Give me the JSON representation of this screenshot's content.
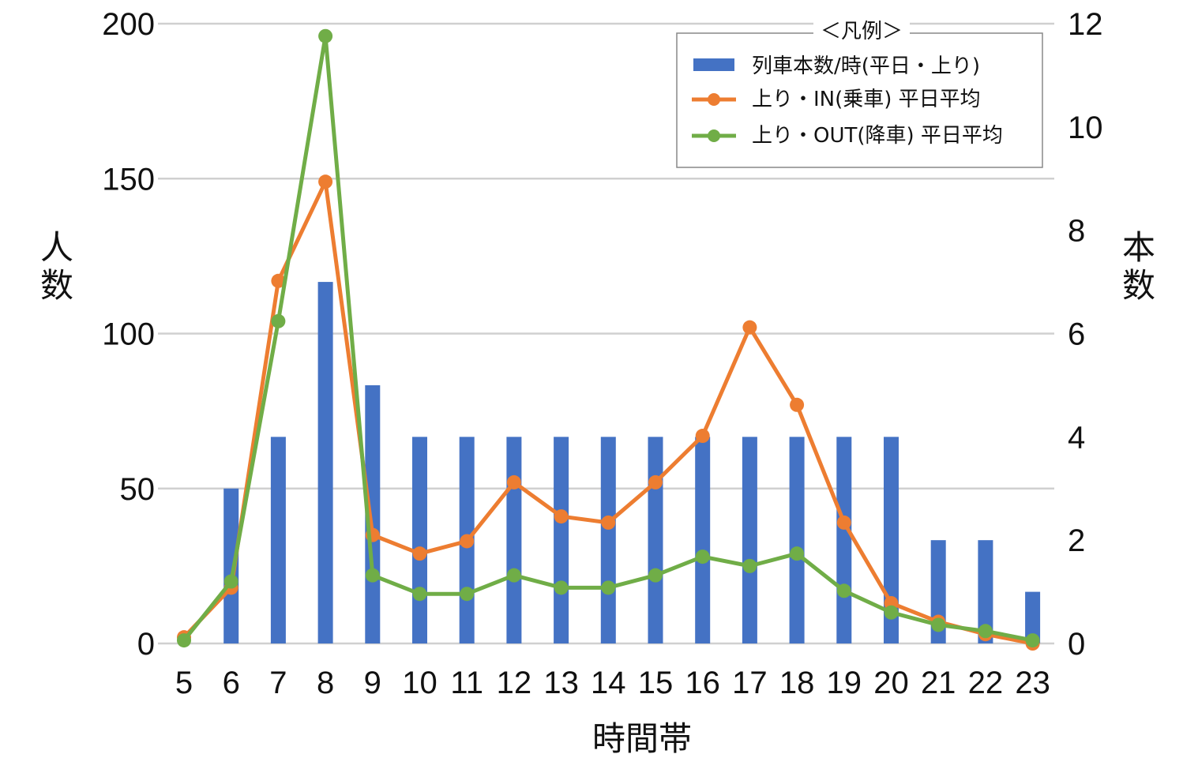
{
  "chart_data": {
    "type": "bar",
    "categories": [
      "5",
      "6",
      "7",
      "8",
      "9",
      "10",
      "11",
      "12",
      "13",
      "14",
      "15",
      "16",
      "17",
      "18",
      "19",
      "20",
      "21",
      "22",
      "23"
    ],
    "bar_series": {
      "name": "列車本数/時(平日・上り)",
      "axis": "right",
      "color": "#4472C4",
      "values": [
        0,
        3,
        4,
        7,
        5,
        4,
        4,
        4,
        4,
        4,
        4,
        4,
        4,
        4,
        4,
        4,
        2,
        2,
        1
      ]
    },
    "line_series": [
      {
        "name": "上り・IN(乗車) 平日平均",
        "axis": "left",
        "color": "#ED7D31",
        "values": [
          2,
          18,
          117,
          149,
          35,
          29,
          33,
          52,
          41,
          39,
          52,
          67,
          102,
          77,
          39,
          13,
          7,
          3,
          0
        ]
      },
      {
        "name": "上り・OUT(降車) 平日平均",
        "axis": "left",
        "color": "#70AD47",
        "values": [
          1,
          20,
          104,
          196,
          22,
          16,
          16,
          22,
          18,
          18,
          22,
          28,
          25,
          29,
          17,
          10,
          6,
          4,
          1
        ]
      }
    ],
    "xlabel": "時間帯",
    "ylabel_left": "人数",
    "ylabel_right": "本数",
    "ylim_left": [
      0,
      200
    ],
    "ylim_right": [
      0,
      12
    ],
    "yticks_left": [
      "0",
      "50",
      "100",
      "150",
      "200"
    ],
    "yticks_right": [
      "0",
      "2",
      "4",
      "6",
      "8",
      "10",
      "12"
    ],
    "legend": {
      "title": "＜凡例＞",
      "placement": "top-right"
    },
    "grid": true
  }
}
